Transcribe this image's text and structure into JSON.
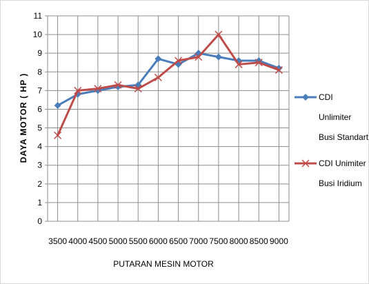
{
  "chart_data": {
    "type": "line",
    "xlabel": "PUTARAN MESIN MOTOR",
    "ylabel": "DAYA MOTOR ( HP )",
    "ylim": [
      0,
      11
    ],
    "yticks": [
      0,
      1,
      2,
      3,
      4,
      5,
      6,
      7,
      8,
      9,
      10,
      11
    ],
    "grid": true,
    "legend_position": "right",
    "categories": [
      "3500",
      "4000",
      "4500",
      "5000",
      "5500",
      "6000",
      "6500",
      "7000",
      "7500",
      "8000",
      "8500",
      "9000"
    ],
    "series": [
      {
        "name": "CDI Unlimiter Busi Standart",
        "legend_lines": [
          "CDI",
          "Unlimiter",
          "Busi Standart"
        ],
        "color": "#4a7ebb",
        "marker": "diamond",
        "values": [
          6.2,
          6.8,
          7.0,
          7.2,
          7.3,
          8.7,
          8.4,
          9.0,
          8.8,
          8.6,
          8.6,
          8.2
        ]
      },
      {
        "name": "CDI Unimiter Busi Iridium",
        "legend_lines": [
          "CDI Unimiter",
          "Busi Iridium"
        ],
        "color": "#be4b48",
        "marker": "x",
        "values": [
          4.6,
          7.0,
          7.1,
          7.3,
          7.1,
          7.7,
          8.6,
          8.8,
          10.0,
          8.4,
          8.5,
          8.1
        ]
      }
    ]
  }
}
